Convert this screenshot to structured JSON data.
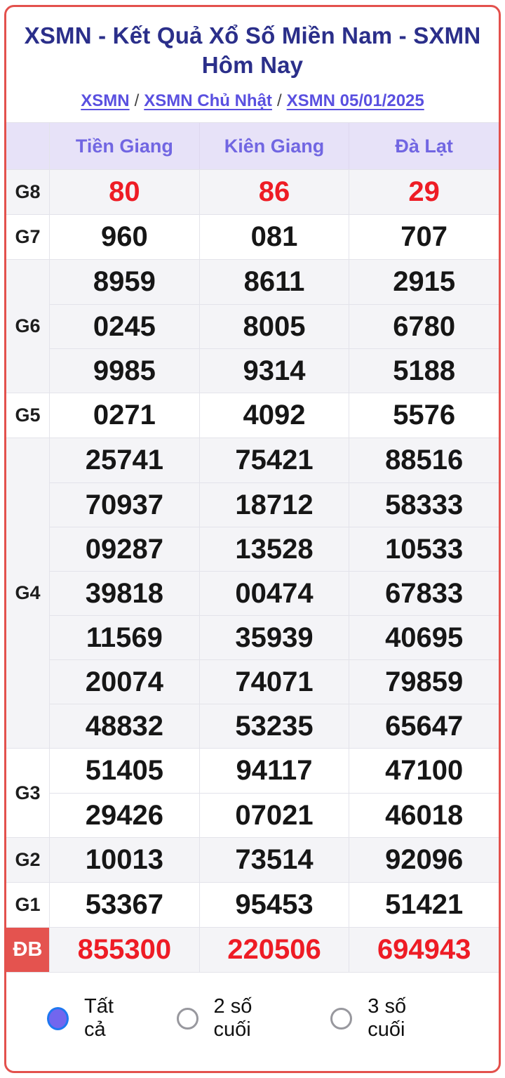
{
  "page": {
    "title": "XSMN - Kết Quả Xổ Số Miền Nam - SXMN Hôm Nay",
    "breadcrumb": [
      {
        "label": "XSMN"
      },
      {
        "label": "XSMN Chủ Nhật"
      },
      {
        "label": "XSMN 05/01/2025"
      }
    ],
    "breadcrumb_separator": "/"
  },
  "table": {
    "columns": [
      "Tiền Giang",
      "Kiên Giang",
      "Đà Lạt"
    ],
    "rows": [
      {
        "prize": "G8",
        "red": true,
        "special": false,
        "columns": [
          [
            "80"
          ],
          [
            "86"
          ],
          [
            "29"
          ]
        ]
      },
      {
        "prize": "G7",
        "red": false,
        "special": false,
        "columns": [
          [
            "960"
          ],
          [
            "081"
          ],
          [
            "707"
          ]
        ]
      },
      {
        "prize": "G6",
        "red": false,
        "special": false,
        "columns": [
          [
            "8959",
            "0245",
            "9985"
          ],
          [
            "8611",
            "8005",
            "9314"
          ],
          [
            "2915",
            "6780",
            "5188"
          ]
        ]
      },
      {
        "prize": "G5",
        "red": false,
        "special": false,
        "columns": [
          [
            "0271"
          ],
          [
            "4092"
          ],
          [
            "5576"
          ]
        ]
      },
      {
        "prize": "G4",
        "red": false,
        "special": false,
        "columns": [
          [
            "25741",
            "70937",
            "09287",
            "39818",
            "11569",
            "20074",
            "48832"
          ],
          [
            "75421",
            "18712",
            "13528",
            "00474",
            "35939",
            "74071",
            "53235"
          ],
          [
            "88516",
            "58333",
            "10533",
            "67833",
            "40695",
            "79859",
            "65647"
          ]
        ]
      },
      {
        "prize": "G3",
        "red": false,
        "special": false,
        "columns": [
          [
            "51405",
            "29426"
          ],
          [
            "94117",
            "07021"
          ],
          [
            "47100",
            "46018"
          ]
        ]
      },
      {
        "prize": "G2",
        "red": false,
        "special": false,
        "columns": [
          [
            "10013"
          ],
          [
            "73514"
          ],
          [
            "92096"
          ]
        ]
      },
      {
        "prize": "G1",
        "red": false,
        "special": false,
        "columns": [
          [
            "53367"
          ],
          [
            "95453"
          ],
          [
            "51421"
          ]
        ]
      },
      {
        "prize": "ĐB",
        "red": true,
        "special": true,
        "columns": [
          [
            "855300"
          ],
          [
            "220506"
          ],
          [
            "694943"
          ]
        ]
      }
    ]
  },
  "filters": {
    "options": [
      {
        "label": "Tất cả",
        "selected": true
      },
      {
        "label": "2 số cuối",
        "selected": false
      },
      {
        "label": "3 số cuối",
        "selected": false
      }
    ]
  },
  "colors": {
    "card_border": "#e3514d",
    "title": "#2b2f8a",
    "link": "#5a50e0",
    "header_bg": "#e7e2f8",
    "header_text": "#7166e2",
    "row_gray": "#f4f4f7",
    "value_red": "#ee1c25",
    "special_label_bg": "#e4534f",
    "radio_selected_fill": "#7266ee",
    "radio_selected_ring": "#1f78f0"
  }
}
